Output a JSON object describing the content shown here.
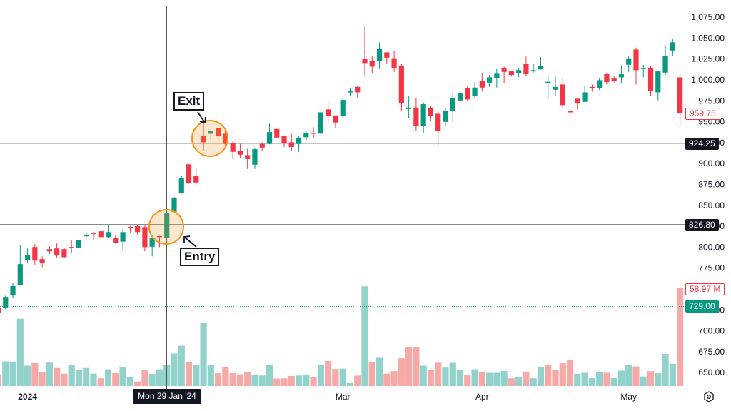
{
  "chart_data": {
    "type": "candlestick",
    "ylim": [
      634,
      1095.5
    ],
    "y_ticks": [
      {
        "value": 1075,
        "label": "1,075.00"
      },
      {
        "value": 1050,
        "label": "1,050.00"
      },
      {
        "value": 1025,
        "label": "1,025.00"
      },
      {
        "value": 1000,
        "label": "1,000.00"
      },
      {
        "value": 975,
        "label": "975.00"
      },
      {
        "value": 950,
        "label": "950.00"
      },
      {
        "value": 925,
        "label": "925.00"
      },
      {
        "value": 900,
        "label": "900.00"
      },
      {
        "value": 875,
        "label": "875.00"
      },
      {
        "value": 850,
        "label": "850.00"
      },
      {
        "value": 825,
        "label": "825.00"
      },
      {
        "value": 800,
        "label": "800.00"
      },
      {
        "value": 775,
        "label": "775.00"
      },
      {
        "value": 750,
        "label": "750.00"
      },
      {
        "value": 725,
        "label": "725.00"
      },
      {
        "value": 700,
        "label": "700.00"
      },
      {
        "value": 675,
        "label": "675.00"
      },
      {
        "value": 650,
        "label": "650.00"
      }
    ],
    "x_ticks": [
      {
        "label": "2024",
        "bar": 3,
        "bold": true
      },
      {
        "label": "Mar",
        "bar": 46
      },
      {
        "label": "Apr",
        "bar": 65
      },
      {
        "label": "May",
        "bar": 85
      }
    ],
    "ohlc": [
      [
        728,
        730,
        718,
        721
      ],
      [
        727.7,
        742,
        726,
        740.5
      ],
      [
        742.2,
        757,
        739.6,
        753.5
      ],
      [
        755,
        802.8,
        755,
        779.7
      ],
      [
        784.6,
        798.5,
        780.6,
        790.2
      ],
      [
        800.2,
        803.6,
        778.9,
        784
      ],
      [
        785.7,
        789,
        776.3,
        781.4
      ],
      [
        797.6,
        801,
        791.7,
        795
      ],
      [
        798.5,
        805,
        786.6,
        790
      ],
      [
        797.6,
        799,
        787.4,
        788
      ],
      [
        800.2,
        808.7,
        793,
        799.4
      ],
      [
        799.4,
        810,
        792.5,
        808.1
      ],
      [
        813,
        818,
        808,
        815
      ],
      [
        817,
        818,
        809,
        816
      ],
      [
        819,
        820,
        810,
        812
      ],
      [
        812,
        826.6,
        811,
        818
      ],
      [
        811,
        814,
        804,
        805
      ],
      [
        806.6,
        822,
        797,
        818
      ],
      [
        824.2,
        825.5,
        817.5,
        823
      ],
      [
        825,
        827,
        815,
        818
      ],
      [
        824,
        826.6,
        795,
        800
      ],
      [
        800.6,
        814.7,
        789,
        810.4
      ],
      [
        813.2,
        813.5,
        800,
        812
      ],
      [
        811.3,
        843,
        811,
        840.3
      ],
      [
        842,
        860,
        842,
        858.3
      ],
      [
        864.2,
        885,
        864,
        883
      ],
      [
        899,
        899.5,
        876,
        877
      ],
      [
        885,
        894.3,
        876,
        877.3
      ],
      [
        933.4,
        950,
        915,
        925.4
      ],
      [
        935.6,
        940.4,
        927.6,
        938.5
      ],
      [
        942.5,
        942.5,
        927.6,
        932.5
      ],
      [
        935.6,
        939.3,
        918,
        923.4
      ],
      [
        924.8,
        926.5,
        905.2,
        914
      ],
      [
        915,
        923.4,
        906.3,
        910.6
      ],
      [
        910,
        917.7,
        893.5,
        905.4
      ],
      [
        898.6,
        918.6,
        893.5,
        917.1
      ],
      [
        923.4,
        925.4,
        915.4,
        919.1
      ],
      [
        923.4,
        947.6,
        923,
        937.6
      ],
      [
        941.3,
        941.3,
        930,
        931.1
      ],
      [
        932.8,
        932.8,
        919.7,
        924.8
      ],
      [
        925.4,
        935.6,
        915.4,
        919.7
      ],
      [
        923.4,
        932.8,
        914,
        931
      ],
      [
        931.4,
        939,
        928,
        936.2
      ],
      [
        936.8,
        943.3,
        929.9,
        935.7
      ],
      [
        935.7,
        963.5,
        935,
        961.2
      ],
      [
        964.7,
        974.6,
        949,
        956.6
      ],
      [
        957.5,
        957.5,
        941.9,
        949
      ],
      [
        957,
        978.4,
        954.7,
        976
      ],
      [
        985.4,
        990.8,
        980.3,
        986.2
      ],
      [
        991.6,
        993,
        978.8,
        985.1
      ],
      [
        1025.2,
        1063.6,
        1003.9,
        1020.1
      ],
      [
        1023,
        1028.7,
        1007.8,
        1015.9
      ],
      [
        1023,
        1044.9,
        1013,
        1037.2
      ],
      [
        1032.9,
        1032.9,
        1019.3,
        1026.6
      ],
      [
        1025.8,
        1034.3,
        1009.5,
        1014.4
      ],
      [
        1017.2,
        1018.7,
        962.4,
        971.7
      ],
      [
        965.2,
        980.3,
        954.7,
        966.9
      ],
      [
        966.9,
        978.3,
        939,
        944.7
      ],
      [
        944.7,
        973.2,
        936.2,
        970.9
      ],
      [
        966.9,
        969,
        951,
        956.6
      ],
      [
        959.5,
        963.2,
        920.5,
        939
      ],
      [
        949.8,
        966.9,
        944.7,
        963.2
      ],
      [
        963.2,
        985.1,
        949.8,
        978.3
      ],
      [
        975.4,
        993,
        974.6,
        984.5
      ],
      [
        989.7,
        993,
        975.4,
        976.6
      ],
      [
        980.3,
        997.2,
        977.7,
        990.8
      ],
      [
        998.2,
        1007.8,
        986,
        990.8
      ],
      [
        996.7,
        1005.9,
        991.6,
        1003
      ],
      [
        1002.2,
        1013,
        990.8,
        1007.3
      ],
      [
        1014.4,
        1015.9,
        996.5,
        1009.5
      ],
      [
        1010.1,
        1010.1,
        1003.9,
        1005.9
      ],
      [
        1007.8,
        1014.4,
        1003,
        1011.6
      ],
      [
        1019.3,
        1027.8,
        1003.9,
        1006.7
      ],
      [
        1010.1,
        1019.3,
        1008.7,
        1011.6
      ],
      [
        1012.5,
        1027.2,
        1012.5,
        1016.7
      ],
      [
        997,
        1005.9,
        977.5,
        997.7
      ],
      [
        988.2,
        1003.9,
        981.1,
        991.6
      ],
      [
        994.5,
        1001,
        965.2,
        969.8
      ],
      [
        962.4,
        967.5,
        943,
        961.2
      ],
      [
        977.5,
        977.5,
        964.7,
        971.7
      ],
      [
        973.7,
        993,
        973.2,
        985.1
      ],
      [
        991.6,
        994.5,
        986,
        990.8
      ],
      [
        989.7,
        1001.6,
        988,
        999.6
      ],
      [
        1006.7,
        1007.8,
        994.5,
        997.3
      ],
      [
        1001.6,
        1004,
        997,
        998.8
      ],
      [
        1003,
        1017.2,
        995.9,
        1006.7
      ],
      [
        1018.1,
        1028.7,
        1009.5,
        1025.8
      ],
      [
        1036.3,
        1038.6,
        994.5,
        1011.6
      ],
      [
        1013,
        1018.1,
        1003,
        1014.4
      ],
      [
        1014.4,
        1016.4,
        980.3,
        986.8
      ],
      [
        985.1,
        1010.7,
        975.4,
        1010.1
      ],
      [
        1008.7,
        1041.5,
        1005.9,
        1028.7
      ],
      [
        1035.1,
        1048.5,
        1028.7,
        1044.9
      ],
      [
        1003,
        1006.7,
        945.3,
        959.75
      ]
    ],
    "volume_millions": [
      7.0,
      14.7,
      14.6,
      40.3,
      12.2,
      13.8,
      8.4,
      14.0,
      10.8,
      7.4,
      12.6,
      9.8,
      10.8,
      7.4,
      4.6,
      10.0,
      7.7,
      11.2,
      5.6,
      2.7,
      9.4,
      7.2,
      10.0,
      12.5,
      19.5,
      24.1,
      14.2,
      12.6,
      37.9,
      12.5,
      7.7,
      11.4,
      7.7,
      7.0,
      8.4,
      6.6,
      6.3,
      12.5,
      4.5,
      4.6,
      6.0,
      6.3,
      6.9,
      5.5,
      12.5,
      15.0,
      10.2,
      10.4,
      1.8,
      6.2,
      59.7,
      14.3,
      16.9,
      7.4,
      8.9,
      16.6,
      23.1,
      23.5,
      12.2,
      9.5,
      14.0,
      11.0,
      13.9,
      9.5,
      6.7,
      10.0,
      8.6,
      7.9,
      7.9,
      9.0,
      4.6,
      5.2,
      8.6,
      4.6,
      11.6,
      12.6,
      9.5,
      13.6,
      15.5,
      7.3,
      7.9,
      4.7,
      8.4,
      7.9,
      4.7,
      9.2,
      12.7,
      11.7,
      5.7,
      8.9,
      7.6,
      19.2,
      13.3,
      58.97
    ],
    "volume_direction": [
      "d",
      "u",
      "u",
      "u",
      "u",
      "d",
      "d",
      "u",
      "d",
      "d",
      "u",
      "u",
      "u",
      "u",
      "d",
      "u",
      "d",
      "u",
      "u",
      "d",
      "d",
      "u",
      "u",
      "u",
      "u",
      "u",
      "d",
      "u",
      "u",
      "u",
      "d",
      "d",
      "d",
      "d",
      "d",
      "u",
      "u",
      "u",
      "d",
      "d",
      "d",
      "u",
      "u",
      "d",
      "u",
      "d",
      "d",
      "u",
      "u",
      "d",
      "u",
      "d",
      "u",
      "d",
      "d",
      "d",
      "d",
      "d",
      "u",
      "d",
      "d",
      "u",
      "u",
      "u",
      "d",
      "u",
      "d",
      "u",
      "u",
      "u",
      "d",
      "u",
      "d",
      "u",
      "u",
      "d",
      "d",
      "d",
      "d",
      "u",
      "u",
      "u",
      "u",
      "d",
      "u",
      "u",
      "u",
      "d",
      "u",
      "d",
      "u",
      "u",
      "u",
      "d"
    ],
    "horizontal_lines": [
      {
        "value": 924.25,
        "label": "924.25"
      },
      {
        "value": 826.8,
        "label": "826.80"
      }
    ],
    "price_line": {
      "value": 729.0,
      "label": "729.00"
    },
    "last_price": {
      "value": 959.75,
      "label": "959.75"
    },
    "last_volume_label": "58.97 M",
    "crosshair": {
      "bar": 22,
      "label": "Mon 29 Jan '24"
    },
    "annotations": {
      "exit": "Exit",
      "entry": "Entry"
    },
    "colors": {
      "up": "#089981",
      "down": "#F23645",
      "volume_up": "#92D2CC",
      "volume_down": "#F7A9A7",
      "highlight": "#F7931A"
    }
  },
  "toolbar": {
    "settings_icon": "settings-icon"
  }
}
